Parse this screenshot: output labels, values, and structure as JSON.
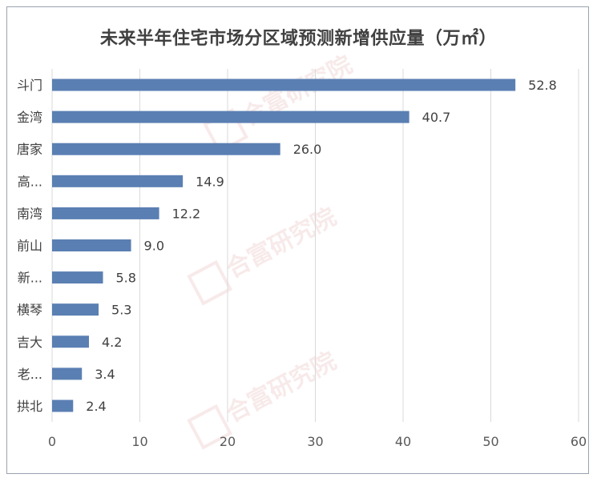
{
  "chart_data": {
    "type": "bar",
    "orientation": "horizontal",
    "title": "未来半年住宅市场分区域预测新增供应量（万㎡）",
    "categories": [
      "斗门",
      "金湾",
      "唐家",
      "高...",
      "南湾",
      "前山",
      "新...",
      "横琴",
      "吉大",
      "老...",
      "拱北"
    ],
    "values": [
      52.8,
      40.7,
      26.0,
      14.9,
      12.2,
      9.0,
      5.8,
      5.3,
      4.2,
      3.4,
      2.4
    ],
    "value_labels": [
      "52.8",
      "40.7",
      "26.0",
      "14.9",
      "12.2",
      "9.0",
      "5.8",
      "5.3",
      "4.2",
      "3.4",
      "2.4"
    ],
    "xlim": [
      0,
      60
    ],
    "xticks": [
      0,
      10,
      20,
      30,
      40,
      50,
      60
    ],
    "grid": "vertical",
    "bar_color": "#5a7fb3"
  },
  "watermark": "合富研究院"
}
